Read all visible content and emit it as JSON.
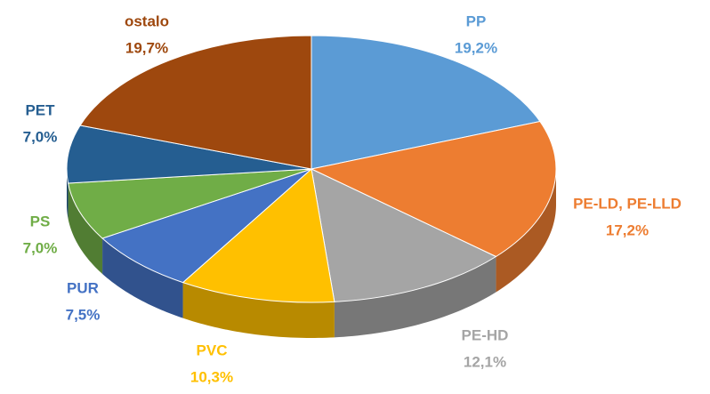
{
  "chart_data": {
    "type": "pie",
    "categories": [
      "PP",
      "PE-LD, PE-LLD",
      "PE-HD",
      "PVC",
      "PUR",
      "PS",
      "PET",
      "ostalo"
    ],
    "values": [
      19.2,
      17.2,
      12.1,
      10.3,
      7.5,
      7.0,
      7.0,
      19.7
    ],
    "value_labels": [
      "19,2%",
      "17,2%",
      "12,1%",
      "10,3%",
      "7,5%",
      "7,0%",
      "7,0%",
      "19,7%"
    ],
    "colors": [
      "#5b9bd5",
      "#ed7d31",
      "#a5a5a5",
      "#ffc000",
      "#4472c4",
      "#70ad47",
      "#255e91",
      "#9e480e"
    ]
  }
}
